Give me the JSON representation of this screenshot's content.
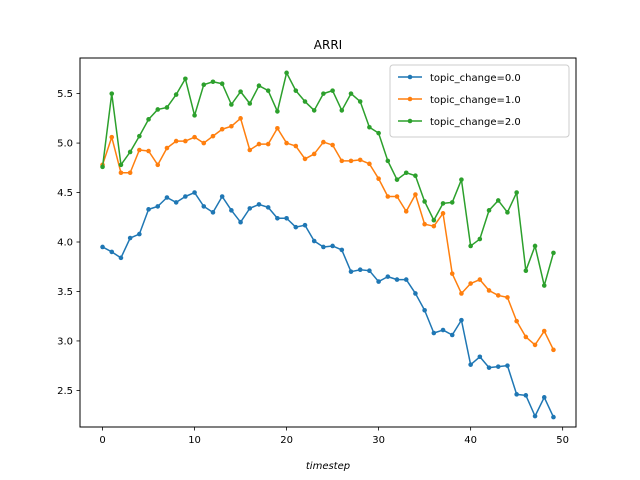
{
  "chart_data": {
    "type": "line",
    "title": "ARRI",
    "xlabel": "timestep",
    "ylabel": "",
    "xlim": [
      -2.45,
      51.45
    ],
    "ylim": [
      2.13,
      5.86
    ],
    "xticks": [
      0,
      10,
      20,
      30,
      40,
      50
    ],
    "yticks": [
      2.5,
      3.0,
      3.5,
      4.0,
      4.5,
      5.0,
      5.5
    ],
    "xtick_labels": [
      "0",
      "10",
      "20",
      "30",
      "40",
      "50"
    ],
    "ytick_labels": [
      "2.5",
      "3.0",
      "3.5",
      "4.0",
      "4.5",
      "5.0",
      "5.5"
    ],
    "grid": false,
    "legend_position": "upper right",
    "x": [
      0,
      1,
      2,
      3,
      4,
      5,
      6,
      7,
      8,
      9,
      10,
      11,
      12,
      13,
      14,
      15,
      16,
      17,
      18,
      19,
      20,
      21,
      22,
      23,
      24,
      25,
      26,
      27,
      28,
      29,
      30,
      31,
      32,
      33,
      34,
      35,
      36,
      37,
      38,
      39,
      40,
      41,
      42,
      43,
      44,
      45,
      46,
      47,
      48,
      49
    ],
    "series": [
      {
        "name": "topic_change=0.0",
        "color": "#1f77b4",
        "values": [
          3.95,
          3.9,
          3.84,
          4.04,
          4.08,
          4.33,
          4.36,
          4.45,
          4.4,
          4.46,
          4.5,
          4.36,
          4.3,
          4.46,
          4.32,
          4.2,
          4.34,
          4.38,
          4.35,
          4.24,
          4.24,
          4.15,
          4.17,
          4.01,
          3.95,
          3.96,
          3.92,
          3.7,
          3.72,
          3.71,
          3.6,
          3.65,
          3.62,
          3.62,
          3.48,
          3.31,
          3.08,
          3.11,
          3.06,
          3.21,
          2.76,
          2.84,
          2.73,
          2.74,
          2.75,
          2.46,
          2.45,
          2.24,
          2.43,
          2.23
        ]
      },
      {
        "name": "topic_change=1.0",
        "color": "#ff7f0e",
        "values": [
          4.78,
          5.06,
          4.7,
          4.7,
          4.93,
          4.92,
          4.78,
          4.95,
          5.02,
          5.02,
          5.06,
          5.0,
          5.07,
          5.14,
          5.17,
          5.25,
          4.93,
          4.99,
          4.99,
          5.15,
          5.0,
          4.97,
          4.84,
          4.89,
          5.01,
          4.98,
          4.82,
          4.82,
          4.83,
          4.79,
          4.64,
          4.46,
          4.46,
          4.31,
          4.48,
          4.18,
          4.16,
          4.29,
          3.68,
          3.48,
          3.58,
          3.62,
          3.51,
          3.46,
          3.44,
          3.2,
          3.04,
          2.96,
          3.1,
          2.91
        ]
      },
      {
        "name": "topic_change=2.0",
        "color": "#2ca02c",
        "values": [
          4.76,
          5.5,
          4.78,
          4.91,
          5.07,
          5.24,
          5.34,
          5.36,
          5.49,
          5.65,
          5.28,
          5.59,
          5.62,
          5.6,
          5.39,
          5.52,
          5.4,
          5.58,
          5.53,
          5.32,
          5.71,
          5.53,
          5.42,
          5.33,
          5.5,
          5.53,
          5.33,
          5.5,
          5.42,
          5.16,
          5.1,
          4.82,
          4.63,
          4.7,
          4.67,
          4.41,
          4.22,
          4.39,
          4.4,
          4.63,
          3.96,
          4.03,
          4.32,
          4.42,
          4.3,
          4.5,
          3.71,
          3.96,
          3.56,
          3.89
        ]
      }
    ]
  }
}
